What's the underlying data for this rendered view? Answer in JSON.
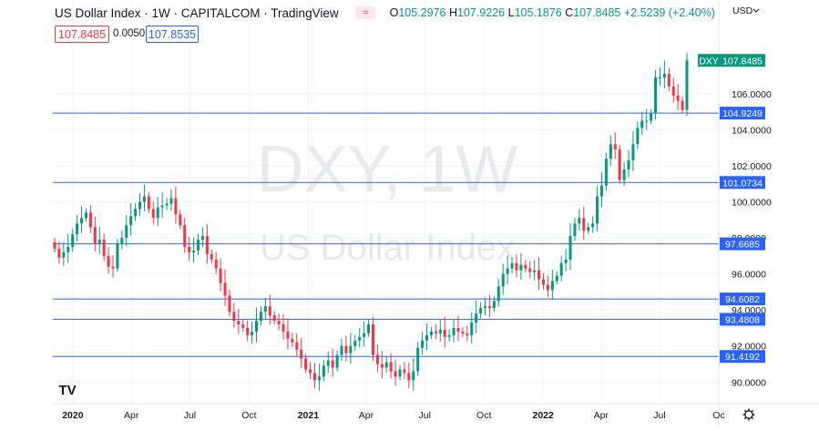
{
  "header": {
    "title": "US Dollar Index · 1W · CAPITALCOM · TradingView",
    "eye_icon_glyph": "≈",
    "ohlc": {
      "open_label": "O",
      "open": "105.2976",
      "high_label": "H",
      "high": "107.9226",
      "low_label": "L",
      "low": "105.1876",
      "close_label": "C",
      "close": "107.8485",
      "change": "+2.5239 (+2.40%)"
    }
  },
  "quote": {
    "sell": "107.8485",
    "spread": "0.0050",
    "buy": "107.8535"
  },
  "watermark": {
    "symbol": "DXY, 1W",
    "name": "US Dollar Index"
  },
  "axis": {
    "currency": "USD",
    "currency_icon": "chevron-down-icon",
    "y_ticks": [
      "106.0000",
      "104.0000",
      "102.0000",
      "100.0000",
      "98.0000",
      "96.0000",
      "94.0000",
      "92.0000",
      "90.0000"
    ],
    "x_ticks": [
      "2020",
      "Apr",
      "Jul",
      "Oct",
      "2021",
      "Apr",
      "Jul",
      "Oct",
      "2022",
      "Apr",
      "Jul",
      "Oc"
    ],
    "logo_text": "TV",
    "settings_icon": "gear-icon"
  },
  "colors": {
    "up": "#089981",
    "down": "#f23645",
    "level": "#2962ff",
    "grid": "#f0f3fa",
    "axis_text": "#131722"
  },
  "chart_data": {
    "type": "candlestick",
    "title": "US Dollar Index · 1W · CAPITALCOM · TradingView",
    "symbol": "DXY",
    "price_tag": {
      "label": "DXY",
      "value": "107.8485"
    },
    "ylim": [
      88.8,
      111.2
    ],
    "xlim": [
      "2019-12-01",
      "2022-10-01"
    ],
    "grid": true,
    "horizontal_levels": [
      {
        "value": 104.9249,
        "label": "104.9249"
      },
      {
        "value": 101.0734,
        "label": "101.0734"
      },
      {
        "value": 97.6685,
        "label": "97.6685"
      },
      {
        "value": 94.6082,
        "label": "94.6082"
      },
      {
        "value": 93.4808,
        "label": "93.4808"
      },
      {
        "value": 91.4192,
        "label": "91.4192"
      }
    ],
    "closes": [
      97.4,
      96.9,
      97.2,
      97.5,
      98.2,
      98.8,
      99.1,
      99.4,
      98.6,
      97.7,
      97.9,
      97.0,
      96.4,
      96.3,
      97.7,
      98.0,
      98.7,
      99.2,
      99.6,
      100.0,
      100.3,
      99.6,
      99.1,
      99.7,
      99.8,
      99.9,
      100.2,
      99.3,
      98.7,
      97.5,
      97.2,
      97.3,
      97.9,
      98.1,
      97.1,
      96.8,
      96.3,
      95.5,
      94.8,
      93.9,
      93.4,
      93.2,
      93.0,
      92.6,
      92.8,
      93.4,
      93.9,
      94.2,
      93.7,
      93.4,
      93.2,
      92.8,
      92.4,
      92.2,
      91.8,
      91.3,
      90.7,
      90.5,
      90.1,
      90.3,
      90.9,
      91.2,
      90.8,
      91.5,
      92.0,
      91.6,
      92.0,
      92.3,
      92.5,
      92.7,
      93.2,
      91.5,
      91.0,
      90.8,
      91.1,
      90.6,
      90.3,
      90.7,
      90.5,
      90.1,
      90.6,
      91.9,
      92.3,
      92.6,
      92.8,
      92.7,
      92.9,
      92.5,
      92.6,
      93.0,
      92.8,
      92.7,
      92.6,
      93.3,
      93.8,
      94.1,
      94.2,
      94.1,
      94.5,
      95.3,
      96.0,
      96.3,
      96.6,
      96.2,
      96.5,
      96.3,
      96.1,
      96.2,
      95.7,
      95.4,
      95.1,
      95.6,
      95.9,
      96.6,
      96.8,
      98.1,
      98.8,
      99.1,
      98.4,
      98.6,
      98.8,
      100.3,
      100.9,
      102.4,
      103.2,
      102.9,
      101.2,
      101.8,
      102.3,
      103.2,
      104.1,
      104.5,
      104.5,
      104.9,
      106.9,
      106.9,
      107.1,
      106.4,
      105.9,
      105.6,
      105.1,
      107.85
    ]
  }
}
